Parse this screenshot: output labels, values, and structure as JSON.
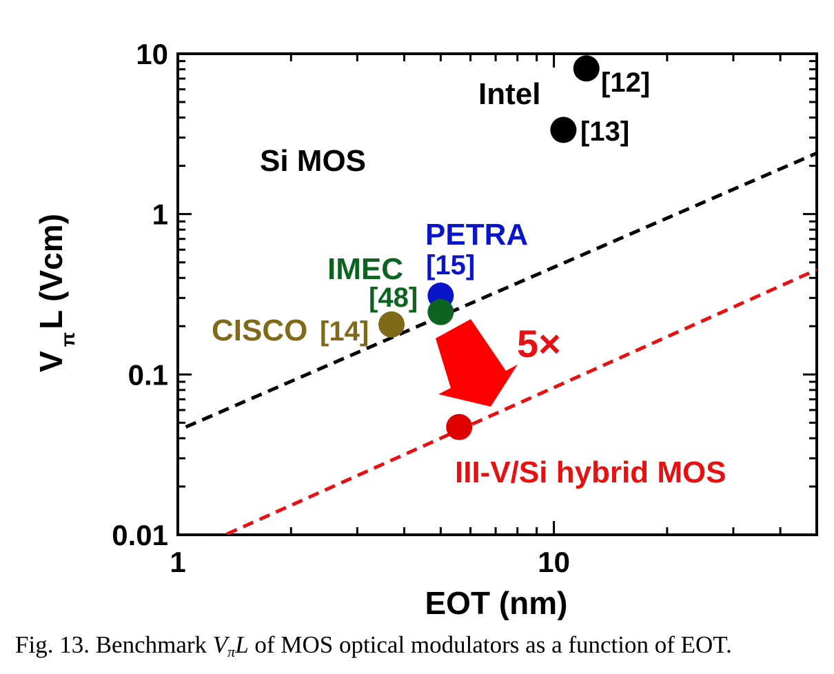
{
  "chart_data": {
    "type": "scatter",
    "x_scale": "log",
    "y_scale": "log",
    "xlim": [
      1,
      50
    ],
    "ylim": [
      0.01,
      10
    ],
    "xlabel": "EOT (nm)",
    "ylabel": "V",
    "ylabel_sub": "π",
    "ylabel_rest": "L (Vcm)",
    "x_ticks": [
      {
        "value": 1,
        "label": "1"
      },
      {
        "value": 10,
        "label": "10"
      }
    ],
    "y_ticks": [
      {
        "value": 0.01,
        "label": "0.01"
      },
      {
        "value": 0.1,
        "label": "0.1"
      },
      {
        "value": 1,
        "label": "1"
      },
      {
        "value": 10,
        "label": "10"
      }
    ],
    "grid": false,
    "points": [
      {
        "x": 12.2,
        "y": 8.1,
        "color": "#000000",
        "label": "[12]"
      },
      {
        "x": 10.6,
        "y": 3.35,
        "color": "#000000",
        "label": "[13]"
      },
      {
        "x": 5.0,
        "y": 0.31,
        "color": "#0a14c8",
        "label": "[15]"
      },
      {
        "x": 5.0,
        "y": 0.245,
        "color": "#0c6420",
        "label": "[48]"
      },
      {
        "x": 3.7,
        "y": 0.205,
        "color": "#7f6a1a",
        "label": "[14]"
      },
      {
        "x": 5.6,
        "y": 0.047,
        "color": "#e00000",
        "label": ""
      }
    ],
    "lines": [
      {
        "name": "Si MOS trend",
        "color": "#000000",
        "dash": true,
        "x": [
          1.05,
          50
        ],
        "y": [
          0.047,
          2.4
        ]
      },
      {
        "name": "III-V/Si hybrid MOS trend",
        "color": "#e41212",
        "dash": true,
        "x": [
          1.35,
          50
        ],
        "y": [
          0.0101,
          0.45
        ]
      }
    ],
    "annotations": [
      {
        "text": "Intel",
        "color": "#000000"
      },
      {
        "text": "Si MOS",
        "color": "#000000"
      },
      {
        "text": "PETRA",
        "color": "#0a14c8"
      },
      {
        "text": "IMEC",
        "color": "#0c6420"
      },
      {
        "text": "CISCO",
        "color": "#7f6a1a"
      },
      {
        "text": "5×",
        "color": "#e41212"
      },
      {
        "text": "III-V/Si hybrid MOS",
        "color": "#e41212"
      }
    ],
    "arrow_color": "#ff0000"
  },
  "caption": {
    "prefix": "Fig. 13. Benchmark ",
    "v": "V",
    "pi": "π",
    "l": "L",
    "suffix": " of MOS optical modulators as a function of EOT."
  }
}
